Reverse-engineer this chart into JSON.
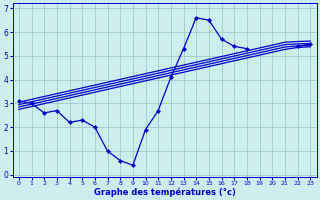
{
  "xlabel": "Graphe des températures (°c)",
  "bg_color": "#cceeee",
  "grid_color": "#99cccc",
  "line_color": "#0000cc",
  "x_data": [
    0,
    1,
    2,
    3,
    4,
    5,
    6,
    7,
    8,
    9,
    10,
    11,
    12,
    13,
    14,
    15,
    16,
    17,
    18,
    19,
    20,
    21,
    22,
    23
  ],
  "y_main": [
    3.1,
    3.0,
    2.6,
    2.7,
    2.2,
    2.3,
    2.0,
    1.0,
    0.6,
    0.4,
    1.9,
    2.7,
    4.1,
    5.3,
    6.6,
    6.5,
    5.7,
    5.4,
    5.3,
    null,
    null,
    null,
    5.4,
    5.5
  ],
  "y_trend1": [
    3.05,
    3.17,
    3.29,
    3.41,
    3.53,
    3.65,
    3.77,
    3.89,
    4.01,
    4.13,
    4.25,
    4.37,
    4.49,
    4.61,
    4.73,
    4.85,
    4.97,
    5.09,
    5.21,
    5.33,
    5.45,
    5.57,
    5.6,
    5.62
  ],
  "y_trend2": [
    2.95,
    3.07,
    3.19,
    3.31,
    3.43,
    3.55,
    3.67,
    3.79,
    3.91,
    4.03,
    4.15,
    4.27,
    4.39,
    4.51,
    4.63,
    4.75,
    4.87,
    4.99,
    5.11,
    5.23,
    5.35,
    5.47,
    5.5,
    5.52
  ],
  "y_trend3": [
    2.85,
    2.97,
    3.09,
    3.21,
    3.33,
    3.45,
    3.57,
    3.69,
    3.81,
    3.93,
    4.05,
    4.17,
    4.29,
    4.41,
    4.53,
    4.65,
    4.77,
    4.89,
    5.01,
    5.13,
    5.25,
    5.37,
    5.42,
    5.44
  ],
  "y_trend4": [
    2.75,
    2.87,
    2.99,
    3.11,
    3.23,
    3.35,
    3.47,
    3.59,
    3.71,
    3.83,
    3.95,
    4.07,
    4.19,
    4.31,
    4.43,
    4.55,
    4.67,
    4.79,
    4.91,
    5.03,
    5.15,
    5.27,
    5.35,
    5.38
  ],
  "ylim": [
    -0.1,
    7.2
  ],
  "xlim": [
    -0.5,
    23.5
  ],
  "yticks": [
    0,
    1,
    2,
    3,
    4,
    5,
    6,
    7
  ],
  "xticks": [
    0,
    1,
    2,
    3,
    4,
    5,
    6,
    7,
    8,
    9,
    10,
    11,
    12,
    13,
    14,
    15,
    16,
    17,
    18,
    19,
    20,
    21,
    22,
    23
  ],
  "marker": "D",
  "markersize": 2.5,
  "linewidth": 0.9
}
